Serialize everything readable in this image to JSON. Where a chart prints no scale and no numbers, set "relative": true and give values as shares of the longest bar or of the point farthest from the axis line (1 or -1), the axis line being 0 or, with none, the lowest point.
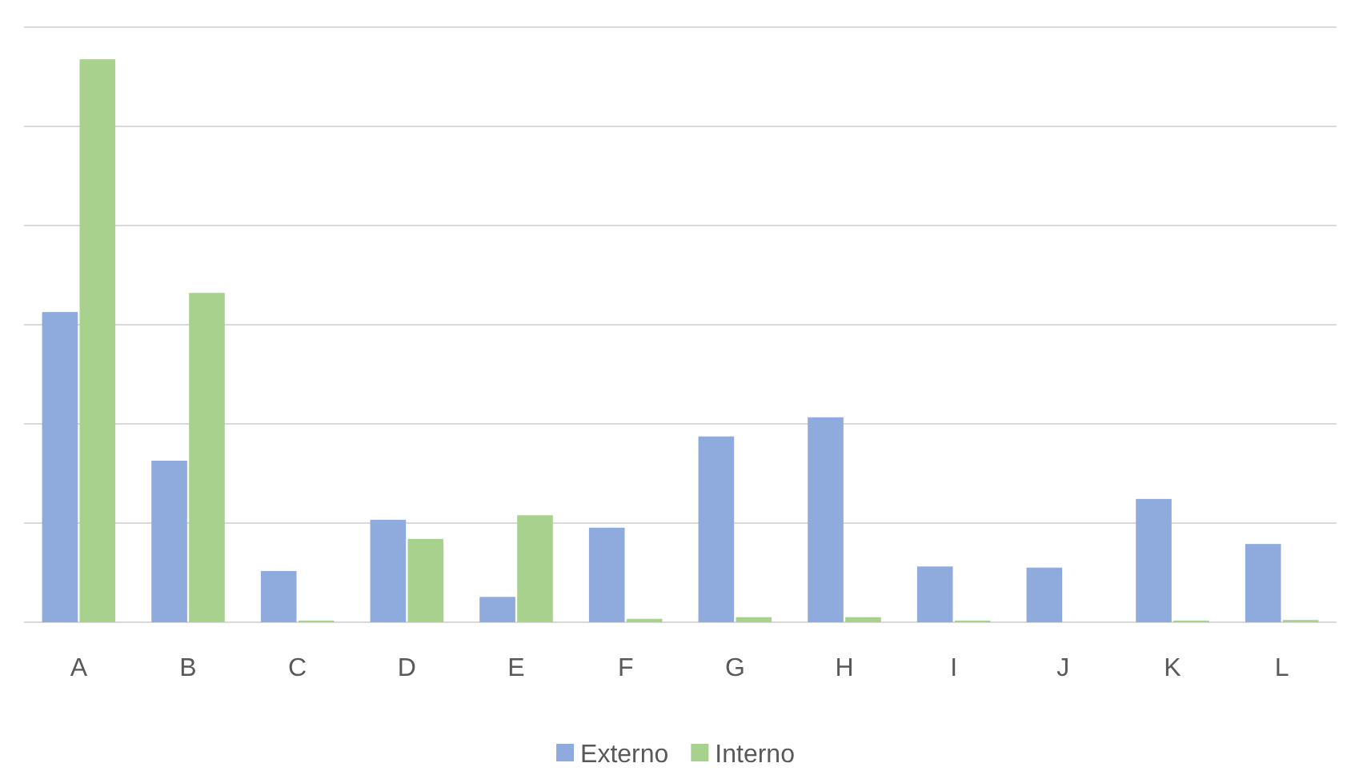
{
  "chart_data": {
    "type": "bar",
    "relative": true,
    "categories": [
      "A",
      "B",
      "C",
      "D",
      "E",
      "F",
      "G",
      "H",
      "I",
      "J",
      "K",
      "L"
    ],
    "series": [
      {
        "name": "Externo",
        "color": "#8faadc",
        "values": [
          0.551,
          0.287,
          0.091,
          0.182,
          0.045,
          0.168,
          0.33,
          0.364,
          0.099,
          0.097,
          0.219,
          0.139
        ]
      },
      {
        "name": "Interno",
        "color": "#a9d18e",
        "values": [
          1,
          0.585,
          0.003,
          0.148,
          0.19,
          0.006,
          0.009,
          0.009,
          0.003,
          0,
          0.003,
          0.004
        ]
      }
    ],
    "grid": true,
    "legend": "bottom"
  }
}
